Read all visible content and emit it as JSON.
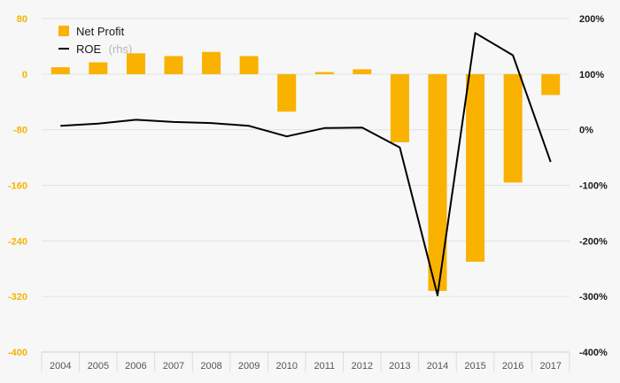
{
  "chart_data": {
    "type": "bar",
    "categories": [
      "2004",
      "2005",
      "2006",
      "2007",
      "2008",
      "2009",
      "2010",
      "2011",
      "2012",
      "2013",
      "2014",
      "2015",
      "2016",
      "2017"
    ],
    "series": [
      {
        "name": "Net Profit",
        "kind": "bar",
        "axis": "left",
        "values": [
          10,
          17,
          30,
          26,
          32,
          26,
          -54,
          3,
          7,
          -98,
          -312,
          -270,
          -156,
          -30
        ]
      },
      {
        "name": "ROE",
        "name_suffix": "(rhs)",
        "kind": "line",
        "axis": "right",
        "values": [
          7,
          11,
          18,
          14,
          12,
          7,
          -12,
          3,
          4,
          -32,
          -298,
          174,
          134,
          -58
        ]
      }
    ],
    "y_left": {
      "min": -400,
      "max": 80,
      "ticks": [
        "80",
        "0",
        "-80",
        "-160",
        "-240",
        "-320",
        "-400"
      ]
    },
    "y_right": {
      "min": -400,
      "max": 200,
      "ticks": [
        "200%",
        "100%",
        "0%",
        "-100%",
        "-200%",
        "-300%",
        "-400%"
      ]
    },
    "grid": true,
    "legend_position": "top-left",
    "colors": {
      "bar": "#f9b200",
      "line": "#000000",
      "left_axis_text": "#f4b400",
      "right_axis_text": "#1a1a1a",
      "grid": "#e2e2e2"
    }
  }
}
